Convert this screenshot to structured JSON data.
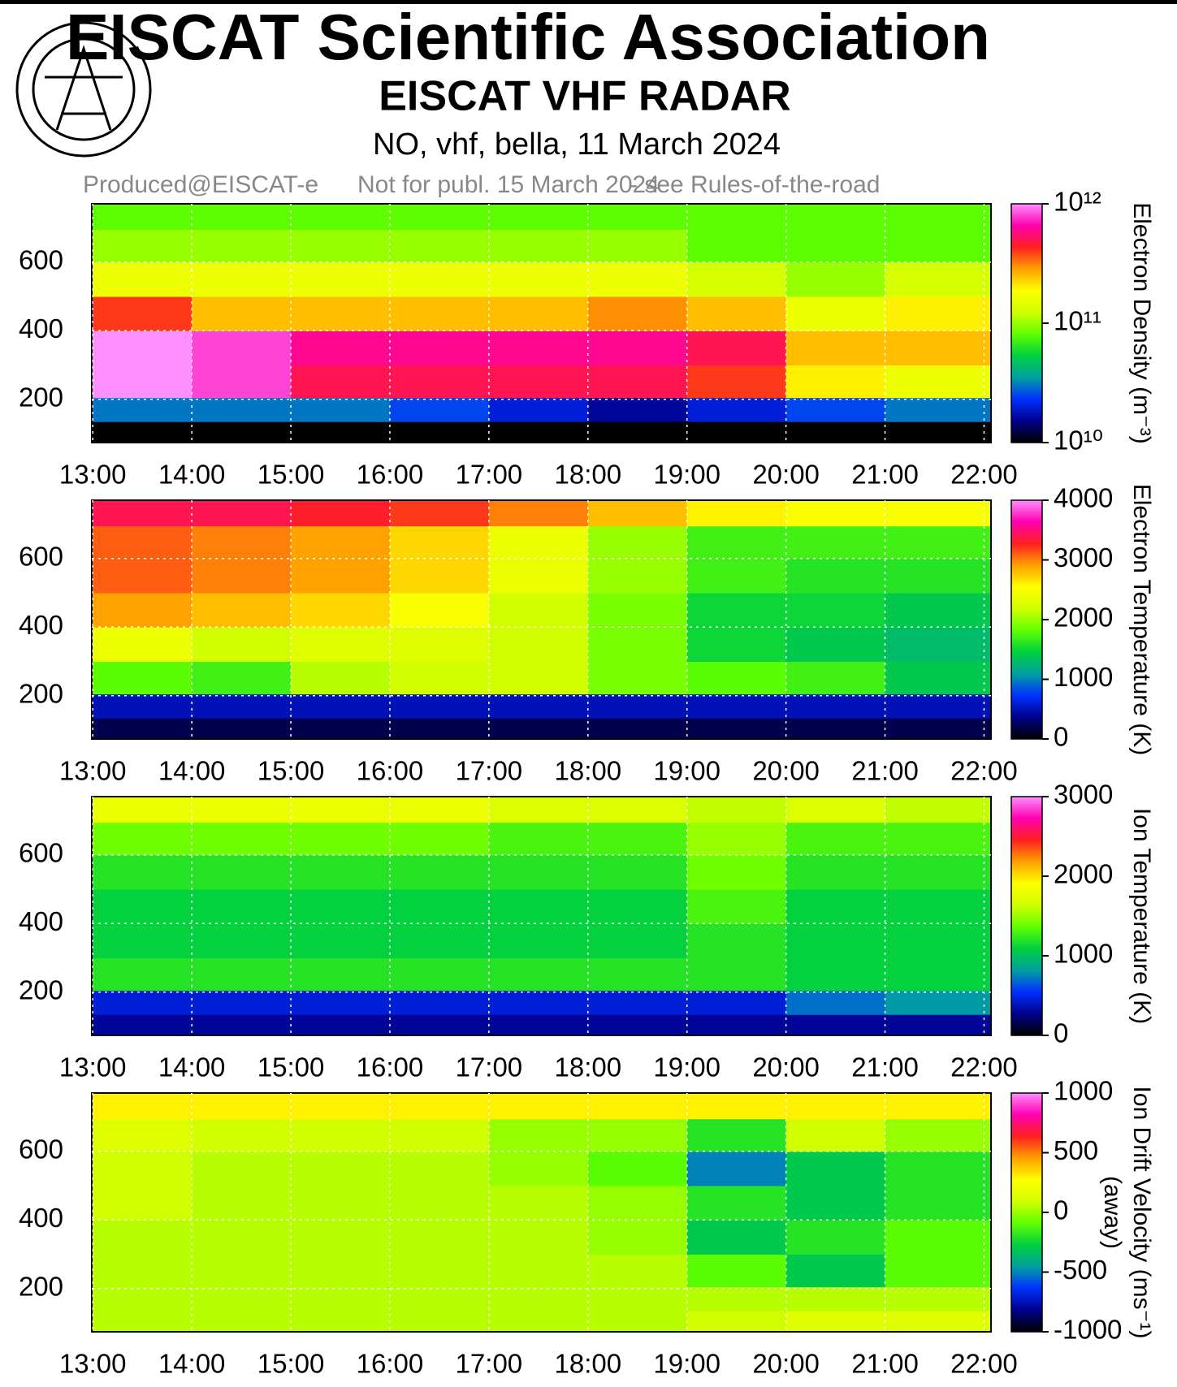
{
  "header": {
    "title": "EISCAT Scientific Association",
    "subtitle": "EISCAT VHF RADAR",
    "experiment": "NO, vhf, bella, 11 March 2024",
    "note_left": "Produced@EISCAT-e",
    "note_overlay": "Not for publ. 15 March 2024",
    "note_right": "- see Rules-of-the-road"
  },
  "chart_data": [
    {
      "type": "heatmap",
      "colorbar_label": "Electron Density (m⁻³)",
      "log_color": true,
      "clim": [
        10000000000.0,
        1000000000000.0
      ],
      "cticks": [
        {
          "value": 10000000000.0,
          "label": "10¹⁰"
        },
        {
          "value": 100000000000.0,
          "label": "10¹¹"
        },
        {
          "value": 1000000000000.0,
          "label": "10¹²"
        }
      ],
      "xlim": [
        12.99,
        22.07
      ],
      "ylim": [
        74,
        770
      ],
      "yticks": [
        200,
        400,
        600
      ],
      "grid": true,
      "xticks": [
        {
          "value": 13,
          "label": "13:00"
        },
        {
          "value": 14,
          "label": "14:00"
        },
        {
          "value": 15,
          "label": "15:00"
        },
        {
          "value": 16,
          "label": "16:00"
        },
        {
          "value": 17,
          "label": "17:00"
        },
        {
          "value": 18,
          "label": "18:00"
        },
        {
          "value": 19,
          "label": "19:00"
        },
        {
          "value": 20,
          "label": "20:00"
        },
        {
          "value": 21,
          "label": "21:00"
        },
        {
          "value": 22,
          "label": "22:00"
        }
      ],
      "x": [
        13.5,
        14.5,
        15.5,
        16.5,
        17.5,
        18.5,
        19.5,
        20.5,
        21.5
      ],
      "y": [
        110,
        160,
        250,
        350,
        450,
        550,
        650,
        740
      ],
      "z": [
        [
          10000000000.0,
          10000000000.0,
          10000000000.0,
          10000000000.0,
          10000000000.0,
          10000000000.0,
          10000000000.0,
          10000000000.0,
          10000000000.0
        ],
        [
          30000000000.0,
          30000000000.0,
          30000000000.0,
          25000000000.0,
          20000000000.0,
          16000000000.0,
          20000000000.0,
          25000000000.0,
          30000000000.0
        ],
        [
          1000000000000.0,
          800000000000.0,
          500000000000.0,
          500000000000.0,
          500000000000.0,
          500000000000.0,
          400000000000.0,
          200000000000.0,
          160000000000.0
        ],
        [
          1000000000000.0,
          800000000000.0,
          600000000000.0,
          600000000000.0,
          600000000000.0,
          600000000000.0,
          500000000000.0,
          250000000000.0,
          250000000000.0
        ],
        [
          400000000000.0,
          250000000000.0,
          250000000000.0,
          250000000000.0,
          250000000000.0,
          300000000000.0,
          250000000000.0,
          160000000000.0,
          200000000000.0
        ],
        [
          160000000000.0,
          160000000000.0,
          160000000000.0,
          160000000000.0,
          160000000000.0,
          160000000000.0,
          130000000000.0,
          100000000000.0,
          130000000000.0
        ],
        [
          100000000000.0,
          100000000000.0,
          100000000000.0,
          100000000000.0,
          100000000000.0,
          100000000000.0,
          80000000000.0,
          80000000000.0,
          80000000000.0
        ],
        [
          80000000000.0,
          80000000000.0,
          80000000000.0,
          80000000000.0,
          80000000000.0,
          80000000000.0,
          80000000000.0,
          80000000000.0,
          80000000000.0
        ]
      ]
    },
    {
      "type": "heatmap",
      "colorbar_label": "Electron Temperature (K)",
      "log_color": false,
      "clim": [
        0,
        4000
      ],
      "cticks": [
        0,
        1000,
        2000,
        3000,
        4000
      ],
      "xlim": [
        12.99,
        22.07
      ],
      "ylim": [
        74,
        770
      ],
      "yticks": [
        200,
        400,
        600
      ],
      "grid": true,
      "xticks": [
        {
          "value": 13,
          "label": "13:00"
        },
        {
          "value": 14,
          "label": "14:00"
        },
        {
          "value": 15,
          "label": "15:00"
        },
        {
          "value": 16,
          "label": "16:00"
        },
        {
          "value": 17,
          "label": "17:00"
        },
        {
          "value": 18,
          "label": "18:00"
        },
        {
          "value": 19,
          "label": "19:00"
        },
        {
          "value": 20,
          "label": "20:00"
        },
        {
          "value": 21,
          "label": "21:00"
        },
        {
          "value": 22,
          "label": "22:00"
        }
      ],
      "x": [
        13.5,
        14.5,
        15.5,
        16.5,
        17.5,
        18.5,
        19.5,
        20.5,
        21.5
      ],
      "y": [
        110,
        160,
        250,
        350,
        450,
        550,
        650,
        740
      ],
      "z": [
        [
          200,
          200,
          200,
          200,
          200,
          200,
          200,
          200,
          200
        ],
        [
          500,
          500,
          500,
          500,
          500,
          500,
          500,
          500,
          500
        ],
        [
          1800,
          1700,
          2100,
          2200,
          2200,
          1900,
          1800,
          1700,
          1400
        ],
        [
          2400,
          2200,
          2300,
          2300,
          2200,
          1900,
          1500,
          1400,
          1300
        ],
        [
          2900,
          2800,
          2700,
          2500,
          2200,
          1900,
          1500,
          1500,
          1400
        ],
        [
          3100,
          3000,
          2900,
          2700,
          2400,
          2000,
          1700,
          1600,
          1600
        ],
        [
          3100,
          3000,
          2900,
          2700,
          2400,
          2000,
          1700,
          1700,
          1700
        ],
        [
          3400,
          3400,
          3300,
          3200,
          3000,
          2800,
          2600,
          2500,
          2500
        ]
      ]
    },
    {
      "type": "heatmap",
      "colorbar_label": "Ion Temperature (K)",
      "log_color": false,
      "clim": [
        0,
        3000
      ],
      "cticks": [
        0,
        1000,
        2000,
        3000
      ],
      "xlim": [
        12.99,
        22.07
      ],
      "ylim": [
        74,
        770
      ],
      "yticks": [
        200,
        400,
        600
      ],
      "grid": true,
      "xticks": [
        {
          "value": 13,
          "label": "13:00"
        },
        {
          "value": 14,
          "label": "14:00"
        },
        {
          "value": 15,
          "label": "15:00"
        },
        {
          "value": 16,
          "label": "16:00"
        },
        {
          "value": 17,
          "label": "17:00"
        },
        {
          "value": 18,
          "label": "18:00"
        },
        {
          "value": 19,
          "label": "19:00"
        },
        {
          "value": 20,
          "label": "20:00"
        },
        {
          "value": 21,
          "label": "21:00"
        },
        {
          "value": 22,
          "label": "22:00"
        }
      ],
      "x": [
        13.5,
        14.5,
        15.5,
        16.5,
        17.5,
        18.5,
        19.5,
        20.5,
        21.5
      ],
      "y": [
        110,
        160,
        250,
        350,
        450,
        550,
        650,
        740
      ],
      "z": [
        [
          300,
          300,
          300,
          300,
          300,
          300,
          300,
          300,
          300
        ],
        [
          450,
          450,
          450,
          450,
          450,
          450,
          450,
          700,
          800
        ],
        [
          1200,
          1200,
          1200,
          1200,
          1200,
          1200,
          1200,
          1100,
          1100
        ],
        [
          1100,
          1100,
          1100,
          1100,
          1100,
          1100,
          1200,
          1100,
          1100
        ],
        [
          1100,
          1100,
          1100,
          1100,
          1100,
          1100,
          1300,
          1100,
          1100
        ],
        [
          1200,
          1200,
          1200,
          1200,
          1200,
          1200,
          1400,
          1200,
          1200
        ],
        [
          1400,
          1400,
          1400,
          1400,
          1300,
          1300,
          1500,
          1300,
          1300
        ],
        [
          1800,
          1800,
          1800,
          1800,
          1700,
          1700,
          1600,
          1700,
          1600
        ]
      ]
    },
    {
      "type": "heatmap",
      "colorbar_label": "Ion Drift Velocity (ms⁻¹)",
      "colorbar_sublabel": "(away)",
      "log_color": false,
      "clim": [
        -1000,
        1000
      ],
      "cticks": [
        -1000,
        -500,
        0,
        500,
        1000
      ],
      "xlim": [
        12.99,
        22.07
      ],
      "ylim": [
        74,
        770
      ],
      "yticks": [
        200,
        400,
        600
      ],
      "grid": true,
      "xticks": [
        {
          "value": 13,
          "label": "13:00"
        },
        {
          "value": 14,
          "label": "14:00"
        },
        {
          "value": 15,
          "label": "15:00"
        },
        {
          "value": 16,
          "label": "16:00"
        },
        {
          "value": 17,
          "label": "17:00"
        },
        {
          "value": 18,
          "label": "18:00"
        },
        {
          "value": 19,
          "label": "19:00"
        },
        {
          "value": 20,
          "label": "20:00"
        },
        {
          "value": 21,
          "label": "21:00"
        },
        {
          "value": 22,
          "label": "22:00"
        }
      ],
      "x": [
        13.5,
        14.5,
        15.5,
        16.5,
        17.5,
        18.5,
        19.5,
        20.5,
        21.5
      ],
      "y": [
        110,
        160,
        250,
        350,
        450,
        550,
        650,
        740
      ],
      "z": [
        [
          50,
          50,
          50,
          50,
          50,
          50,
          100,
          150,
          150
        ],
        [
          50,
          50,
          50,
          50,
          50,
          50,
          50,
          50,
          50
        ],
        [
          50,
          50,
          50,
          50,
          50,
          50,
          -100,
          -300,
          -100
        ],
        [
          50,
          50,
          50,
          50,
          50,
          0,
          -300,
          -200,
          -100
        ],
        [
          100,
          50,
          50,
          50,
          50,
          0,
          -200,
          -300,
          -200
        ],
        [
          100,
          50,
          50,
          50,
          0,
          -100,
          -500,
          -300,
          -200
        ],
        [
          150,
          100,
          100,
          100,
          0,
          0,
          -200,
          100,
          0
        ],
        [
          300,
          300,
          300,
          300,
          300,
          300,
          300,
          300,
          300
        ]
      ]
    }
  ]
}
